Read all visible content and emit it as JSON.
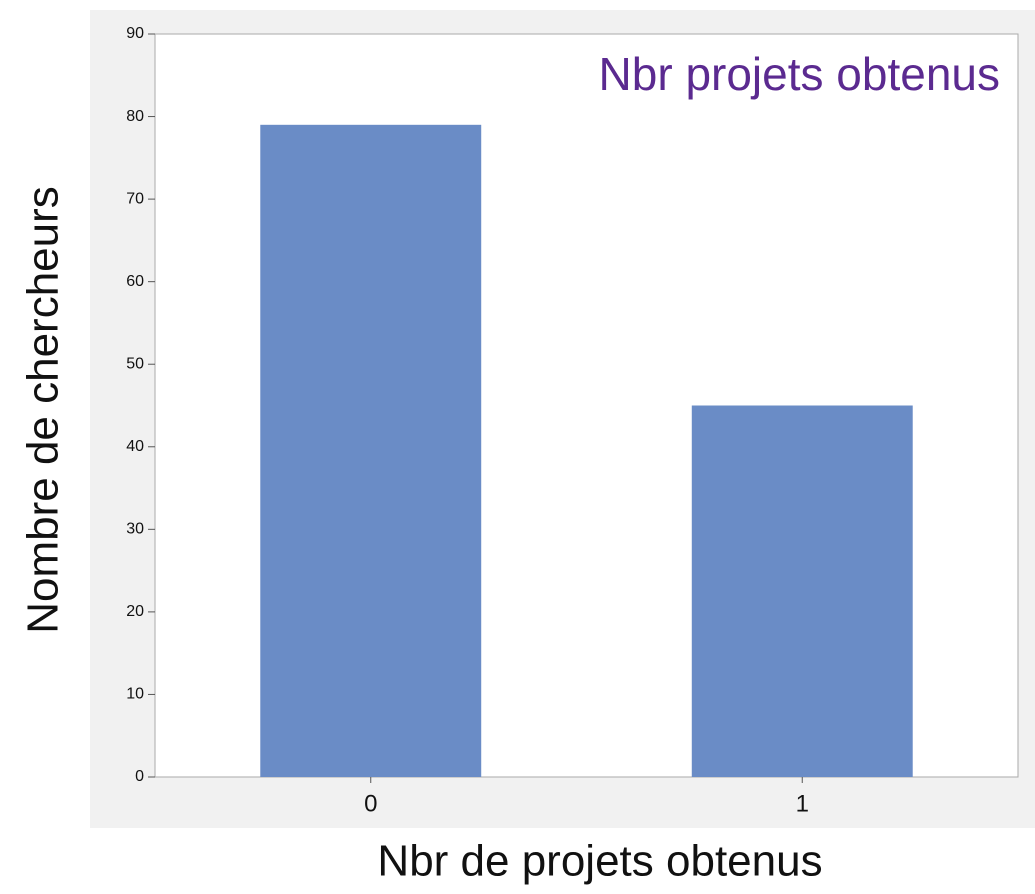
{
  "chart_data": {
    "type": "bar",
    "title": "Nbr projets obtenus",
    "x_label": "Nbr de projets obtenus",
    "y_label": "Nombre de chercheurs",
    "categories": [
      "0",
      "1"
    ],
    "values": [
      79,
      45
    ],
    "color": "#6a8cc6",
    "ylim": [
      0,
      90
    ],
    "yticks": [
      0,
      10,
      20,
      30,
      40,
      50,
      60,
      70,
      80,
      90
    ],
    "grid": false
  }
}
